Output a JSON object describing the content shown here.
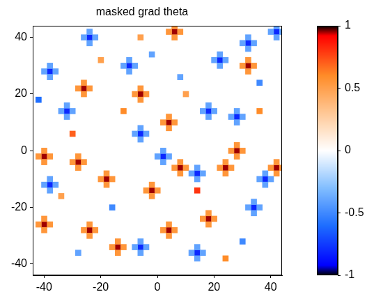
{
  "chart_data": {
    "type": "heatmap",
    "title": "masked grad theta",
    "xlim": [
      -44,
      44
    ],
    "ylim": [
      -44,
      44
    ],
    "xticks": [
      -40,
      -20,
      0,
      20,
      40
    ],
    "yticks": [
      -40,
      -20,
      0,
      20,
      40
    ],
    "grid": false,
    "cell_size": 2,
    "cells": [
      [
        6,
        42,
        0.95
      ],
      [
        4,
        42,
        0.55
      ],
      [
        8,
        42,
        0.55
      ],
      [
        6,
        40,
        0.55
      ],
      [
        6,
        44,
        0.55
      ],
      [
        -26,
        22,
        0.95
      ],
      [
        -28,
        22,
        0.55
      ],
      [
        -24,
        22,
        0.55
      ],
      [
        -26,
        20,
        0.55
      ],
      [
        -26,
        24,
        0.55
      ],
      [
        -6,
        20,
        0.95
      ],
      [
        -8,
        20,
        0.55
      ],
      [
        -4,
        20,
        0.55
      ],
      [
        -6,
        18,
        0.55
      ],
      [
        -6,
        22,
        0.55
      ],
      [
        4,
        10,
        0.95
      ],
      [
        2,
        10,
        0.55
      ],
      [
        6,
        10,
        0.55
      ],
      [
        4,
        8,
        0.55
      ],
      [
        4,
        12,
        0.55
      ],
      [
        8,
        -6,
        0.95
      ],
      [
        6,
        -6,
        0.55
      ],
      [
        10,
        -6,
        0.55
      ],
      [
        8,
        -8,
        0.55
      ],
      [
        8,
        -4,
        0.55
      ],
      [
        -2,
        -14,
        0.95
      ],
      [
        -4,
        -14,
        0.55
      ],
      [
        0,
        -14,
        0.55
      ],
      [
        -2,
        -16,
        0.55
      ],
      [
        -2,
        -12,
        0.55
      ],
      [
        -24,
        -28,
        0.95
      ],
      [
        -26,
        -28,
        0.55
      ],
      [
        -22,
        -28,
        0.55
      ],
      [
        -24,
        -30,
        0.55
      ],
      [
        -24,
        -26,
        0.55
      ],
      [
        -14,
        -34,
        0.95
      ],
      [
        -16,
        -34,
        0.55
      ],
      [
        -12,
        -34,
        0.55
      ],
      [
        -14,
        -36,
        0.55
      ],
      [
        -14,
        -32,
        0.55
      ],
      [
        4,
        -28,
        0.95
      ],
      [
        2,
        -28,
        0.55
      ],
      [
        6,
        -28,
        0.55
      ],
      [
        4,
        -30,
        0.55
      ],
      [
        4,
        -26,
        0.55
      ],
      [
        18,
        -24,
        0.95
      ],
      [
        16,
        -24,
        0.55
      ],
      [
        20,
        -24,
        0.55
      ],
      [
        18,
        -26,
        0.55
      ],
      [
        18,
        -22,
        0.55
      ],
      [
        24,
        -6,
        0.95
      ],
      [
        22,
        -6,
        0.55
      ],
      [
        26,
        -6,
        0.55
      ],
      [
        24,
        -8,
        0.55
      ],
      [
        24,
        -4,
        0.55
      ],
      [
        32,
        30,
        0.95
      ],
      [
        30,
        30,
        0.55
      ],
      [
        34,
        30,
        0.55
      ],
      [
        32,
        28,
        0.55
      ],
      [
        32,
        32,
        0.55
      ],
      [
        42,
        -6,
        0.95
      ],
      [
        40,
        -6,
        0.55
      ],
      [
        44,
        -6,
        0.55
      ],
      [
        42,
        -8,
        0.55
      ],
      [
        42,
        -4,
        0.55
      ],
      [
        -40,
        -2,
        0.95
      ],
      [
        -42,
        -2,
        0.55
      ],
      [
        -38,
        -2,
        0.55
      ],
      [
        -40,
        -4,
        0.55
      ],
      [
        -40,
        0,
        0.55
      ],
      [
        -18,
        -10,
        0.95
      ],
      [
        -20,
        -10,
        0.55
      ],
      [
        -16,
        -10,
        0.55
      ],
      [
        -18,
        -12,
        0.55
      ],
      [
        -18,
        -8,
        0.55
      ],
      [
        -40,
        -26,
        0.95
      ],
      [
        -42,
        -26,
        0.55
      ],
      [
        -38,
        -26,
        0.55
      ],
      [
        -40,
        -28,
        0.55
      ],
      [
        -40,
        -24,
        0.55
      ],
      [
        28,
        0,
        0.95
      ],
      [
        26,
        0,
        0.55
      ],
      [
        30,
        0,
        0.55
      ],
      [
        28,
        -2,
        0.55
      ],
      [
        28,
        2,
        0.55
      ],
      [
        -28,
        -4,
        0.95
      ],
      [
        -30,
        -4,
        0.55
      ],
      [
        -26,
        -4,
        0.55
      ],
      [
        -28,
        -6,
        0.55
      ],
      [
        -28,
        -2,
        0.55
      ],
      [
        -30,
        6,
        0.7
      ],
      [
        -12,
        14,
        0.6
      ],
      [
        10,
        20,
        0.5
      ],
      [
        14,
        -14,
        0.8
      ],
      [
        -34,
        -16,
        0.5
      ],
      [
        36,
        14,
        0.6
      ],
      [
        -20,
        32,
        0.5
      ],
      [
        24,
        -38,
        0.6
      ],
      [
        -6,
        40,
        0.5
      ],
      [
        -24,
        40,
        -0.8
      ],
      [
        -26,
        40,
        -0.4
      ],
      [
        -22,
        40,
        -0.4
      ],
      [
        -24,
        38,
        -0.4
      ],
      [
        -24,
        42,
        -0.4
      ],
      [
        -10,
        30,
        -0.8
      ],
      [
        -12,
        30,
        -0.4
      ],
      [
        -8,
        30,
        -0.4
      ],
      [
        -10,
        28,
        -0.4
      ],
      [
        -10,
        32,
        -0.4
      ],
      [
        22,
        32,
        -0.8
      ],
      [
        20,
        32,
        -0.4
      ],
      [
        24,
        32,
        -0.4
      ],
      [
        22,
        30,
        -0.4
      ],
      [
        22,
        34,
        -0.4
      ],
      [
        18,
        14,
        -0.8
      ],
      [
        16,
        14,
        -0.4
      ],
      [
        20,
        14,
        -0.4
      ],
      [
        18,
        12,
        -0.4
      ],
      [
        18,
        16,
        -0.4
      ],
      [
        2,
        -2,
        -0.8
      ],
      [
        0,
        -2,
        -0.4
      ],
      [
        4,
        -2,
        -0.4
      ],
      [
        2,
        -4,
        -0.4
      ],
      [
        2,
        0,
        -0.4
      ],
      [
        14,
        -36,
        -0.8
      ],
      [
        12,
        -36,
        -0.4
      ],
      [
        16,
        -36,
        -0.4
      ],
      [
        14,
        -38,
        -0.4
      ],
      [
        14,
        -34,
        -0.4
      ],
      [
        -6,
        -34,
        -0.8
      ],
      [
        -8,
        -34,
        -0.4
      ],
      [
        -4,
        -34,
        -0.4
      ],
      [
        -6,
        -36,
        -0.4
      ],
      [
        -6,
        -32,
        -0.4
      ],
      [
        38,
        -10,
        -0.8
      ],
      [
        36,
        -10,
        -0.4
      ],
      [
        40,
        -10,
        -0.4
      ],
      [
        38,
        -12,
        -0.4
      ],
      [
        38,
        -8,
        -0.4
      ],
      [
        -32,
        14,
        -0.8
      ],
      [
        -34,
        14,
        -0.4
      ],
      [
        -30,
        14,
        -0.4
      ],
      [
        -32,
        12,
        -0.4
      ],
      [
        -32,
        16,
        -0.4
      ],
      [
        -38,
        28,
        -0.8
      ],
      [
        -40,
        28,
        -0.4
      ],
      [
        -36,
        28,
        -0.4
      ],
      [
        -38,
        26,
        -0.4
      ],
      [
        -38,
        30,
        -0.4
      ],
      [
        34,
        -20,
        -0.8
      ],
      [
        32,
        -20,
        -0.4
      ],
      [
        36,
        -20,
        -0.4
      ],
      [
        34,
        -22,
        -0.4
      ],
      [
        34,
        -18,
        -0.4
      ],
      [
        42,
        42,
        -0.8
      ],
      [
        40,
        42,
        -0.4
      ],
      [
        44,
        42,
        -0.4
      ],
      [
        42,
        40,
        -0.4
      ],
      [
        42,
        44,
        -0.4
      ],
      [
        14,
        -8,
        -0.8
      ],
      [
        12,
        -8,
        -0.4
      ],
      [
        16,
        -8,
        -0.4
      ],
      [
        14,
        -10,
        -0.4
      ],
      [
        14,
        -6,
        -0.4
      ],
      [
        28,
        12,
        -0.8
      ],
      [
        26,
        12,
        -0.4
      ],
      [
        30,
        12,
        -0.4
      ],
      [
        28,
        10,
        -0.4
      ],
      [
        28,
        14,
        -0.4
      ],
      [
        32,
        38,
        -0.8
      ],
      [
        30,
        38,
        -0.4
      ],
      [
        34,
        38,
        -0.4
      ],
      [
        32,
        36,
        -0.4
      ],
      [
        32,
        40,
        -0.4
      ],
      [
        -6,
        6,
        -0.8
      ],
      [
        -8,
        6,
        -0.4
      ],
      [
        -4,
        6,
        -0.4
      ],
      [
        -6,
        4,
        -0.4
      ],
      [
        -6,
        8,
        -0.4
      ],
      [
        -38,
        -12,
        -0.8
      ],
      [
        -40,
        -12,
        -0.4
      ],
      [
        -36,
        -12,
        -0.4
      ],
      [
        -38,
        -14,
        -0.4
      ],
      [
        -38,
        -10,
        -0.4
      ],
      [
        -42,
        18,
        -0.6
      ],
      [
        -16,
        -20,
        -0.5
      ],
      [
        30,
        -32,
        -0.5
      ],
      [
        -28,
        -36,
        -0.4
      ],
      [
        8,
        26,
        -0.4
      ],
      [
        36,
        24,
        -0.5
      ],
      [
        -2,
        34,
        -0.4
      ]
    ],
    "colorbar": {
      "range": [
        -1,
        1
      ],
      "ticks": [
        -1,
        -0.5,
        0,
        0.5,
        1
      ]
    }
  }
}
